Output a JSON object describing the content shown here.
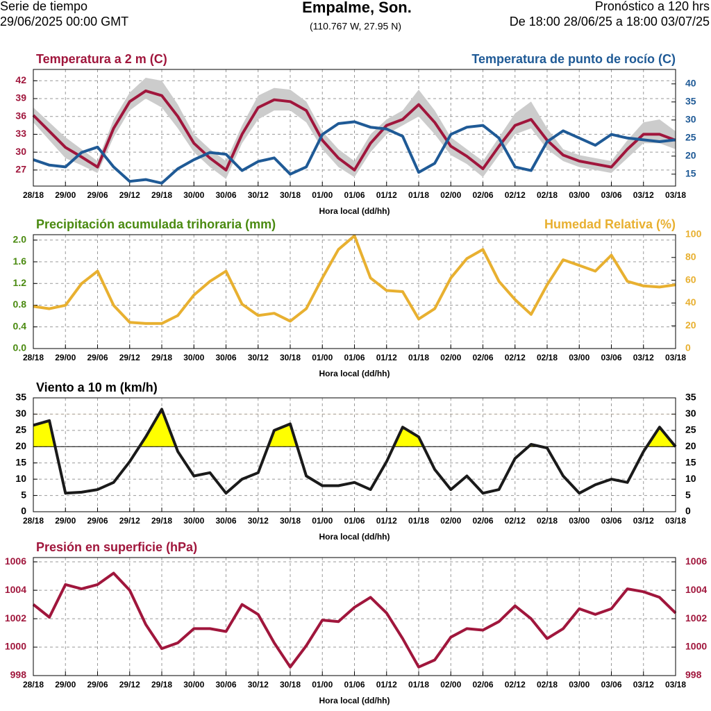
{
  "header": {
    "left_top": "Serie de tiempo",
    "left_bottom": "29/06/2025 00:00 GMT",
    "title": "Empalme, Son.",
    "subtitle": "(110.767 W, 27.95 N)",
    "right_top": "Pronóstico a 120 hrs",
    "right_bottom": "De 18:00 28/06/25 a 18:00 03/07/25"
  },
  "chart_data": [
    {
      "type": "line",
      "title": "Temperatura a 2 m (C)",
      "title_color": "#a0163c",
      "y2_title": "Temperatura de punto de rocío (C)",
      "y2_title_color": "#1f5a96",
      "xlabel": "Hora local (dd/hh)",
      "categories": [
        "28/18",
        null,
        "29/00",
        null,
        "29/06",
        null,
        "29/12",
        null,
        "29/18",
        null,
        "30/00",
        null,
        "30/06",
        null,
        "30/12",
        null,
        "30/18",
        null,
        "01/00",
        null,
        "01/06",
        null,
        "01/12",
        null,
        "01/18",
        null,
        "02/00",
        null,
        "02/06",
        null,
        "02/12",
        null,
        "02/18",
        null,
        "03/00",
        null,
        "03/06",
        null,
        "03/12",
        null,
        "03/18"
      ],
      "ylim": [
        24.3,
        43.9
      ],
      "yticks": [
        27,
        30,
        33,
        36,
        39,
        42
      ],
      "y2lim": [
        11.7,
        44
      ],
      "y2ticks": [
        15,
        20,
        25,
        30,
        35,
        40
      ],
      "grid": true,
      "band": {
        "color": "#cccccc",
        "low": [
          35,
          32,
          29,
          27.8,
          26.5,
          32.5,
          37,
          39,
          37.5,
          34,
          30,
          27.5,
          25.5,
          31.5,
          35.5,
          37,
          37,
          35,
          30.5,
          27.5,
          25.8,
          30,
          33,
          34.5,
          36,
          33,
          29.5,
          28,
          25.8,
          29.5,
          33,
          34,
          30.5,
          28.5,
          27.5,
          27,
          26.5,
          29,
          31.5,
          31.5,
          30.5
        ],
        "high": [
          37.5,
          35,
          32.5,
          30.5,
          28.5,
          35.5,
          40,
          42.5,
          42,
          38,
          33,
          30.5,
          28.5,
          34.5,
          39.5,
          40.8,
          40.5,
          38.5,
          33.5,
          30.5,
          28.5,
          33,
          35.5,
          37,
          40.5,
          37,
          32.5,
          30.5,
          28.5,
          32.5,
          36.5,
          38.5,
          34,
          30.5,
          29.5,
          29,
          28.5,
          32,
          35,
          35.5,
          33.5
        ]
      },
      "series": [
        {
          "color": "#a0163c",
          "values": [
            36.2,
            33.5,
            30.8,
            29.2,
            27.5,
            34,
            38.5,
            40.3,
            39.5,
            36,
            31.5,
            29,
            27,
            33,
            37.5,
            38.8,
            38.5,
            37,
            32,
            29,
            27,
            31.5,
            34.5,
            35.5,
            38,
            35,
            31,
            29.3,
            27.2,
            31,
            34.5,
            35.5,
            32,
            29.5,
            28.5,
            28,
            27.5,
            30.5,
            33,
            33,
            32
          ]
        },
        {
          "color": "#1f5a96",
          "axis": "y2",
          "values": [
            19,
            17.5,
            17,
            21,
            22.5,
            17,
            13,
            13.5,
            12.5,
            16.5,
            19,
            21,
            20.5,
            16,
            18.5,
            19.5,
            15,
            17,
            26,
            29,
            29.5,
            28,
            27.5,
            25.5,
            15.5,
            18,
            26,
            28,
            28.5,
            25,
            17,
            16,
            24,
            27,
            25,
            23,
            26,
            25,
            24.5,
            24,
            24.5
          ]
        }
      ]
    },
    {
      "type": "line",
      "title": "Precipitación acumulada trihoraria (mm)",
      "title_color": "#4a8a10",
      "y2_title": "Humedad Relativa (%)",
      "y2_title_color": "#e8b030",
      "xlabel": "Hora local (dd/hh)",
      "categories": [
        "28/18",
        null,
        "29/00",
        null,
        "29/06",
        null,
        "29/12",
        null,
        "29/18",
        null,
        "30/00",
        null,
        "30/06",
        null,
        "30/12",
        null,
        "30/18",
        null,
        "01/00",
        null,
        "01/06",
        null,
        "01/12",
        null,
        "01/18",
        null,
        "02/00",
        null,
        "02/06",
        null,
        "02/12",
        null,
        "02/18",
        null,
        "03/00",
        null,
        "03/06",
        null,
        "03/12",
        null,
        "03/18"
      ],
      "ylim": [
        0,
        2.1
      ],
      "yticks": [
        {
          "value": 0,
          "label": "0.0"
        },
        0.4,
        0.8,
        1.2,
        1.6,
        {
          "value": 2,
          "label": "2.0"
        }
      ],
      "y2lim": [
        0,
        100
      ],
      "y2ticks": [
        0,
        20,
        40,
        60,
        80,
        100
      ],
      "grid": true,
      "series": [
        {
          "color": "#e8b030",
          "axis": "y2",
          "values": [
            37,
            35,
            38,
            57,
            68,
            38,
            23,
            22,
            22,
            29,
            47,
            59,
            68,
            39,
            29,
            31,
            24,
            35,
            62,
            87,
            99,
            62,
            51,
            50,
            26,
            35,
            62,
            79,
            87,
            59,
            43,
            30,
            56,
            78,
            73,
            68,
            82,
            59,
            55,
            54,
            56
          ]
        }
      ]
    },
    {
      "type": "line",
      "title": "Viento a 10 m (km/h)",
      "title_color": "#000000",
      "xlabel": "Hora local (dd/hh)",
      "categories": [
        "28/18",
        null,
        "29/00",
        null,
        "29/06",
        null,
        "29/12",
        null,
        "29/18",
        null,
        "30/00",
        null,
        "30/06",
        null,
        "30/12",
        null,
        "30/18",
        null,
        "01/00",
        null,
        "01/06",
        null,
        "01/12",
        null,
        "01/18",
        null,
        "02/00",
        null,
        "02/06",
        null,
        "02/12",
        null,
        "02/18",
        null,
        "03/00",
        null,
        "03/06",
        null,
        "03/12",
        null,
        "03/18"
      ],
      "ylim": [
        0,
        35
      ],
      "yticks": [
        0,
        5,
        10,
        15,
        20,
        25,
        30,
        35
      ],
      "y2lim": [
        0,
        35
      ],
      "y2ticks": [
        0,
        5,
        10,
        15,
        20,
        25,
        30,
        35
      ],
      "grid": true,
      "thresholds": [
        {
          "value": 20,
          "color": "#ffff00"
        },
        {
          "value": 30,
          "color": "#f4a020"
        }
      ],
      "series": [
        {
          "color": "#1a1a1a",
          "values": [
            26.6,
            28,
            5.7,
            6,
            6.8,
            9,
            15.4,
            23,
            31.5,
            18.5,
            11,
            12,
            5.7,
            10,
            12,
            25,
            27,
            11,
            8,
            8,
            9,
            6.8,
            15.4,
            26,
            23,
            13,
            6.8,
            11,
            5.7,
            6.8,
            16.4,
            20.7,
            19.6,
            11,
            5.7,
            8.3,
            10,
            9,
            18.5,
            26,
            20
          ]
        }
      ]
    },
    {
      "type": "line",
      "title": "Presión en superficie (hPa)",
      "title_color": "#a0163c",
      "xlabel": "Hora local (dd/hh)",
      "categories": [
        "28/18",
        null,
        "29/00",
        null,
        "29/06",
        null,
        "29/12",
        null,
        "29/18",
        null,
        "30/00",
        null,
        "30/06",
        null,
        "30/12",
        null,
        "30/18",
        null,
        "01/00",
        null,
        "01/06",
        null,
        "01/12",
        null,
        "01/18",
        null,
        "02/00",
        null,
        "02/06",
        null,
        "02/12",
        null,
        "02/18",
        null,
        "03/00",
        null,
        "03/06",
        null,
        "03/12",
        null,
        "03/18"
      ],
      "ylim": [
        998,
        1006.3
      ],
      "yticks": [
        998,
        1000,
        1002,
        1004,
        1006
      ],
      "y2lim": [
        998,
        1006.3
      ],
      "y2ticks": [
        998,
        1000,
        1002,
        1004,
        1006
      ],
      "grid": true,
      "series": [
        {
          "color": "#a0163c",
          "values": [
            1003,
            1002.1,
            1004.4,
            1004.1,
            1004.4,
            1005.2,
            1004,
            1001.6,
            999.9,
            1000.3,
            1001.3,
            1001.3,
            1001.1,
            1003,
            1002.3,
            1000.3,
            998.6,
            1000.1,
            1001.9,
            1001.8,
            1002.8,
            1003.5,
            1002.4,
            1000.6,
            998.6,
            999.1,
            1000.7,
            1001.3,
            1001.2,
            1001.8,
            1002.9,
            1002,
            1000.6,
            1001.3,
            1002.7,
            1002.3,
            1002.7,
            1004.1,
            1003.9,
            1003.5,
            1002.4
          ]
        }
      ]
    }
  ]
}
